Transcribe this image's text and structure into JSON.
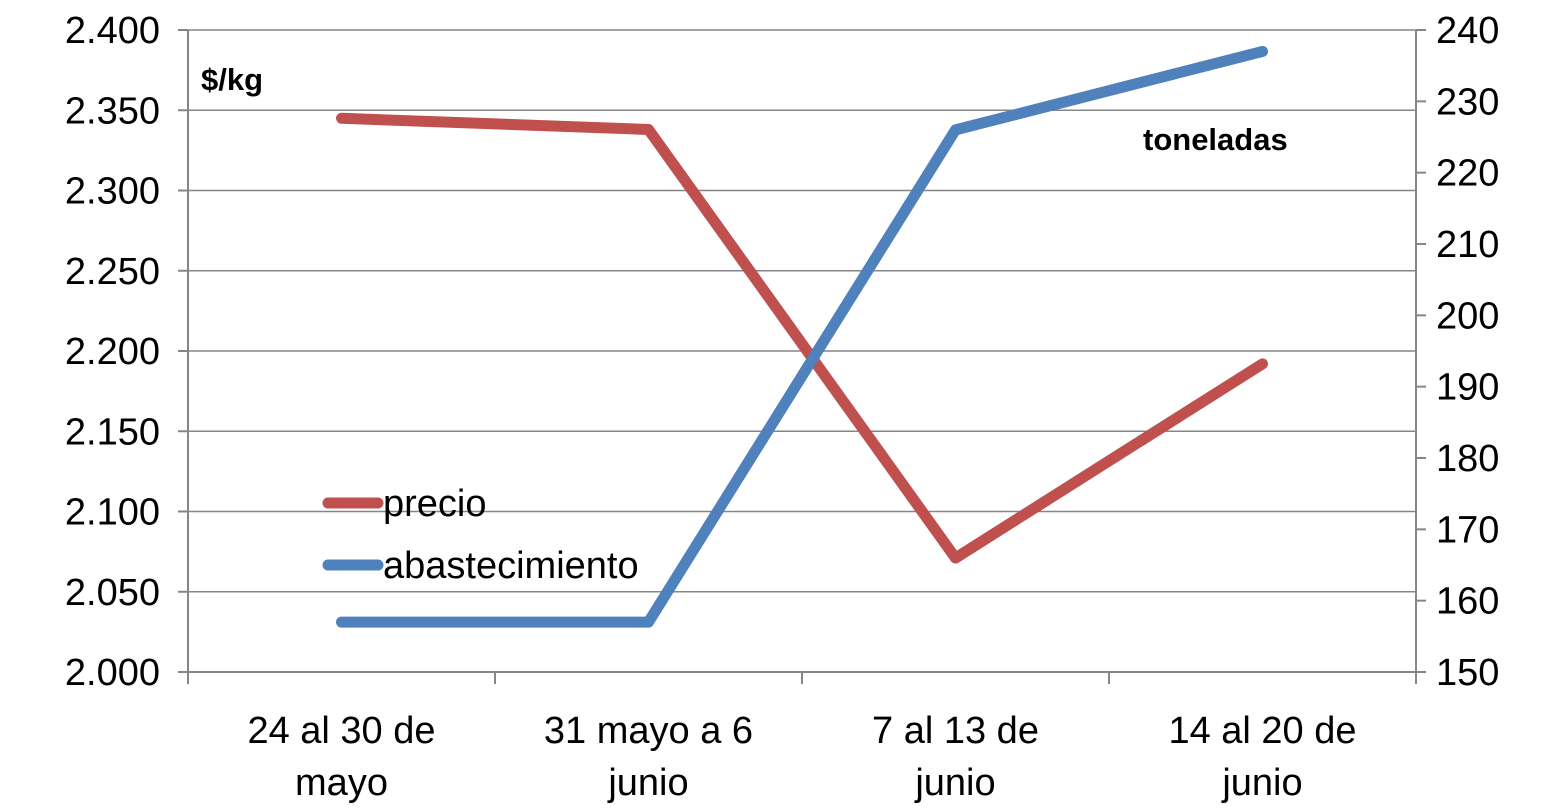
{
  "chart_data": {
    "type": "line",
    "categories": [
      [
        "24 al 30 de",
        "mayo"
      ],
      [
        "31 mayo a 6",
        "junio"
      ],
      [
        "7 al 13 de",
        "junio"
      ],
      [
        "14 al 20 de",
        "junio"
      ]
    ],
    "y_left": {
      "label": "$/kg",
      "range": [
        2000,
        2400
      ],
      "ticks": [
        "2.000",
        "2.050",
        "2.100",
        "2.150",
        "2.200",
        "2.250",
        "2.300",
        "2.350",
        "2.400"
      ]
    },
    "y_right": {
      "label": "toneladas",
      "range": [
        150,
        240
      ],
      "ticks": [
        "150",
        "160",
        "170",
        "180",
        "190",
        "200",
        "210",
        "220",
        "230",
        "240"
      ]
    },
    "series": [
      {
        "name": "precio",
        "axis": "left",
        "color": "#c0504d",
        "values": [
          2345,
          2338,
          2071,
          2192
        ]
      },
      {
        "name": "abastecimiento",
        "axis": "right",
        "color": "#4f81bd",
        "values": [
          157,
          157,
          226,
          237
        ]
      }
    ],
    "grid": true,
    "legend_position": "lower-left"
  }
}
